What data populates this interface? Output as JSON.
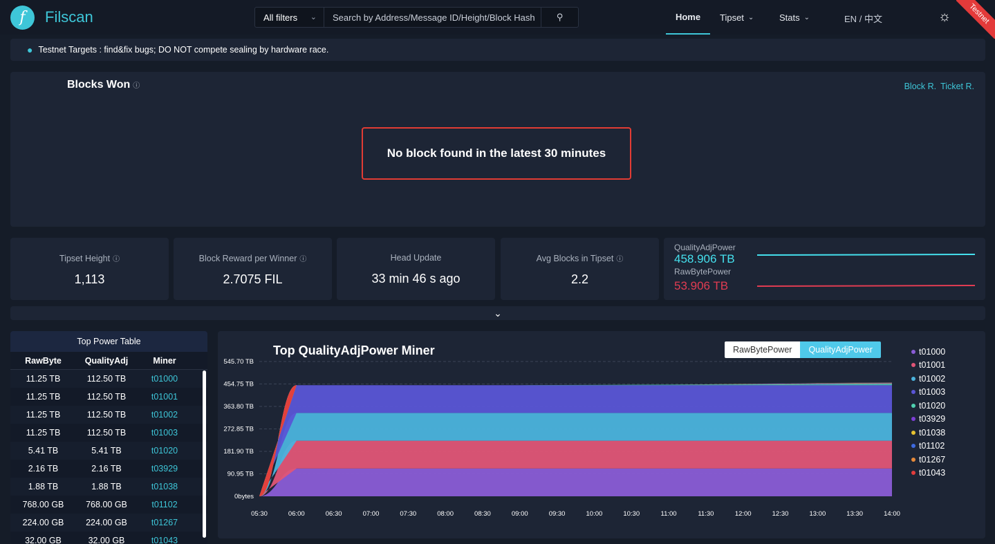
{
  "brand": {
    "name": "Filscan",
    "logo_glyph": "f"
  },
  "search": {
    "filter_label": "All filters",
    "placeholder": "Search by Address/Message ID/Height/Block Hash"
  },
  "nav": {
    "home": "Home",
    "tipset": "Tipset",
    "stats": "Stats"
  },
  "lang": {
    "en": "EN",
    "sep": "/",
    "zh": "中文"
  },
  "ribbon": "Testnet",
  "notice": "Testnet Targets : find&fix bugs; DO NOT compete sealing by hardware race.",
  "blocks_won": {
    "title": "Blocks Won",
    "link1": "Block R.",
    "link2": "Ticket R.",
    "empty": "No block found in the latest 30 minutes"
  },
  "stats": [
    {
      "label": "Tipset Height",
      "value": "1,113"
    },
    {
      "label": "Block Reward per Winner",
      "value": "2.7075 FIL"
    },
    {
      "label": "Head Update",
      "value": "33 min 46 s ago"
    },
    {
      "label": "Avg Blocks in Tipset",
      "value": "2.2"
    }
  ],
  "power": {
    "qa_label": "QualityAdjPower",
    "qa_value": "458.906 TB",
    "raw_label": "RawBytePower",
    "raw_value": "53.906 TB",
    "qa_color": "#45e1ee",
    "raw_color": "#e23c52"
  },
  "top_table": {
    "title": "Top Power Table",
    "headers": [
      "RawByte",
      "QualityAdj",
      "Miner"
    ],
    "rows": [
      [
        "11.25 TB",
        "112.50 TB",
        "t01000"
      ],
      [
        "11.25 TB",
        "112.50 TB",
        "t01001"
      ],
      [
        "11.25 TB",
        "112.50 TB",
        "t01002"
      ],
      [
        "11.25 TB",
        "112.50 TB",
        "t01003"
      ],
      [
        "5.41 TB",
        "5.41 TB",
        "t01020"
      ],
      [
        "2.16 TB",
        "2.16 TB",
        "t03929"
      ],
      [
        "1.88 TB",
        "1.88 TB",
        "t01038"
      ],
      [
        "768.00 GB",
        "768.00 GB",
        "t01102"
      ],
      [
        "224.00 GB",
        "224.00 GB",
        "t01267"
      ],
      [
        "32.00 GB",
        "32.00 GB",
        "t01043"
      ]
    ]
  },
  "chart_data": {
    "type": "area",
    "title": "Top QualityAdjPower Miner",
    "toggle": {
      "raw": "RawBytePower",
      "qa": "QualityAdjPower",
      "selected": "QualityAdjPower"
    },
    "y_ticks": [
      "0bytes",
      "90.95 TB",
      "181.90 TB",
      "272.85 TB",
      "363.80 TB",
      "454.75 TB",
      "545.70 TB"
    ],
    "ylim": [
      0,
      545.7
    ],
    "x": [
      "05:30",
      "06:00",
      "06:30",
      "07:00",
      "07:30",
      "08:00",
      "08:30",
      "09:00",
      "09:30",
      "10:00",
      "10:30",
      "11:00",
      "11:30",
      "12:00",
      "12:30",
      "13:00",
      "13:30",
      "14:00"
    ],
    "stacked": true,
    "legend_position": "right",
    "series": [
      {
        "name": "t01000",
        "color": "#8a5cd6",
        "values": [
          0,
          112.5,
          112.5,
          112.5,
          112.5,
          112.5,
          112.5,
          112.5,
          112.5,
          112.5,
          112.5,
          112.5,
          112.5,
          112.5,
          112.5,
          112.5,
          112.5,
          112.5
        ]
      },
      {
        "name": "t01001",
        "color": "#e05577",
        "values": [
          0,
          112.5,
          112.5,
          112.5,
          112.5,
          112.5,
          112.5,
          112.5,
          112.5,
          112.5,
          112.5,
          112.5,
          112.5,
          112.5,
          112.5,
          112.5,
          112.5,
          112.5
        ]
      },
      {
        "name": "t01002",
        "color": "#4bb3dd",
        "values": [
          0,
          112.5,
          112.5,
          112.5,
          112.5,
          112.5,
          112.5,
          112.5,
          112.5,
          112.5,
          112.5,
          112.5,
          112.5,
          112.5,
          112.5,
          112.5,
          112.5,
          112.5
        ]
      },
      {
        "name": "t01003",
        "color": "#5a55d6",
        "values": [
          0,
          112.5,
          112.5,
          112.5,
          112.5,
          112.5,
          112.5,
          112.5,
          112.5,
          112.5,
          112.5,
          112.5,
          112.5,
          112.5,
          112.5,
          112.5,
          112.5,
          112.5
        ]
      },
      {
        "name": "t01020",
        "color": "#4fd1b0",
        "values": [
          0,
          0,
          0,
          0,
          0,
          0,
          0,
          0,
          0.5,
          1,
          1.5,
          2,
          2.5,
          3,
          3.5,
          4,
          5,
          5.4
        ]
      },
      {
        "name": "t03929",
        "color": "#7d3fd6",
        "values": [
          0,
          0,
          0,
          0,
          0,
          0,
          0,
          0,
          0,
          0,
          0,
          0,
          0.5,
          1,
          1.5,
          2,
          2.1,
          2.2
        ]
      },
      {
        "name": "t01038",
        "color": "#e6c230",
        "values": [
          0,
          0,
          0,
          0,
          0,
          0,
          0,
          0,
          0,
          0,
          0,
          0,
          0.5,
          1,
          1.2,
          1.5,
          1.8,
          1.9
        ]
      },
      {
        "name": "t01102",
        "color": "#3e6ae0",
        "values": [
          0,
          0,
          0,
          0,
          0,
          0,
          0,
          0,
          0,
          0,
          0,
          0,
          0,
          0.3,
          0.5,
          0.6,
          0.7,
          0.8
        ]
      },
      {
        "name": "t01267",
        "color": "#e68a3a",
        "values": [
          0,
          0,
          0,
          0,
          0,
          0,
          0,
          0,
          0,
          0,
          0,
          0,
          0,
          0,
          0.1,
          0.15,
          0.2,
          0.2
        ]
      },
      {
        "name": "t01043",
        "color": "#e23c3c",
        "values": [
          0,
          0,
          0,
          0,
          0,
          0,
          0,
          0,
          0,
          0,
          0,
          0,
          0,
          0,
          0,
          0.02,
          0.03,
          0.03
        ]
      }
    ]
  }
}
